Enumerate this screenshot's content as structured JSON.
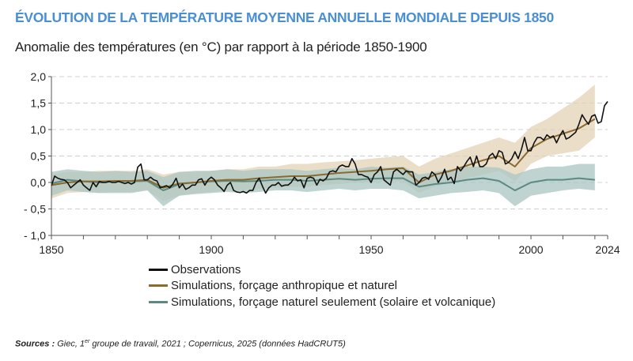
{
  "title": "ÉVOLUTION DE LA TEMPÉRATURE MOYENNE ANNUELLE MONDIALE DEPUIS 1850",
  "subtitle": "Anomalie des températures (en °C) par rapport à la période 1850-1900",
  "sources": {
    "label": "Sources :",
    "text_a": " Giec, 1",
    "sup": "er",
    "text_b": " groupe de travail, 2021 ; Copernicus, 2025 (données HadCRUT5)"
  },
  "chart_data": {
    "type": "line",
    "xlim": [
      1850,
      2024
    ],
    "ylim": [
      -1.0,
      2.0
    ],
    "x_ticks": [
      1850,
      1900,
      1950,
      2000,
      2024
    ],
    "y_ticks": [
      "2,0",
      "1,5",
      "1,0",
      "0,5",
      "0,0",
      "- 0,5",
      "- 1,0"
    ],
    "y_tick_values": [
      2.0,
      1.5,
      1.0,
      0.5,
      0.0,
      -0.5,
      -1.0
    ],
    "grid": "horizontal dashed",
    "legend_position": "bottom",
    "colors": {
      "observations": "#111111",
      "anthro": "#8a6a2e",
      "anthro_band": "#e3d3b5",
      "natural": "#5b8a82",
      "natural_band": "#a9c5c2"
    },
    "observations": {
      "name": "Observations",
      "start_year": 1850,
      "values": [
        -0.06,
        0.12,
        0.08,
        0.06,
        0.05,
        0.0,
        -0.1,
        -0.05,
        0.0,
        0.05,
        -0.05,
        -0.1,
        -0.15,
        0.0,
        -0.08,
        0.02,
        0.0,
        0.0,
        0.02,
        0.0,
        0.0,
        0.02,
        0.0,
        -0.02,
        0.0,
        -0.03,
        0.0,
        0.29,
        0.35,
        0.05,
        0.05,
        0.1,
        0.05,
        0.03,
        -0.1,
        -0.08,
        -0.06,
        -0.1,
        -0.03,
        0.08,
        -0.1,
        -0.03,
        -0.13,
        -0.1,
        -0.05,
        -0.05,
        0.05,
        0.07,
        -0.05,
        0.05,
        0.1,
        0.05,
        -0.05,
        -0.1,
        -0.17,
        -0.05,
        0.0,
        -0.15,
        -0.18,
        -0.19,
        -0.17,
        -0.2,
        -0.15,
        -0.15,
        0.0,
        0.08,
        -0.07,
        -0.2,
        -0.1,
        -0.05,
        -0.05,
        0.0,
        -0.07,
        -0.05,
        -0.05,
        0.0,
        0.1,
        0.03,
        0.05,
        -0.1,
        0.08,
        0.1,
        0.08,
        -0.05,
        0.06,
        0.03,
        0.08,
        0.2,
        0.22,
        0.2,
        0.3,
        0.33,
        0.3,
        0.3,
        0.45,
        0.35,
        0.15,
        0.15,
        0.12,
        0.1,
        0.0,
        0.15,
        0.2,
        0.3,
        0.05,
        0.0,
        -0.05,
        0.2,
        0.25,
        0.2,
        0.15,
        0.22,
        0.2,
        0.2,
        -0.05,
        0.0,
        0.08,
        0.1,
        0.06,
        0.2,
        0.15,
        0.0,
        0.1,
        0.25,
        0.05,
        0.1,
        -0.02,
        0.3,
        0.22,
        0.3,
        0.4,
        0.48,
        0.3,
        0.5,
        0.3,
        0.3,
        0.35,
        0.5,
        0.55,
        0.45,
        0.6,
        0.57,
        0.35,
        0.38,
        0.45,
        0.58,
        0.45,
        0.62,
        0.85,
        0.6,
        0.6,
        0.75,
        0.85,
        0.85,
        0.8,
        0.9,
        0.85,
        0.88,
        0.75,
        0.88,
        0.98,
        0.82,
        0.85,
        0.9,
        0.95,
        1.1,
        1.28,
        1.18,
        1.1,
        1.25,
        1.28,
        1.12,
        1.15,
        1.45,
        1.53
      ]
    },
    "simulation_years": [
      1850,
      1855,
      1860,
      1865,
      1870,
      1875,
      1880,
      1885,
      1890,
      1895,
      1900,
      1905,
      1910,
      1915,
      1920,
      1925,
      1930,
      1935,
      1940,
      1945,
      1950,
      1955,
      1960,
      1965,
      1970,
      1975,
      1980,
      1985,
      1990,
      1995,
      2000,
      2005,
      2010,
      2015,
      2020
    ],
    "anthro": {
      "name": "Simulations, forçage anthropique et naturel",
      "mean": [
        -0.05,
        0.0,
        0.02,
        0.02,
        0.03,
        0.03,
        0.05,
        -0.1,
        -0.02,
        0.0,
        0.03,
        0.05,
        0.05,
        0.08,
        0.1,
        0.12,
        0.12,
        0.15,
        0.18,
        0.2,
        0.22,
        0.25,
        0.27,
        0.0,
        0.15,
        0.22,
        0.32,
        0.42,
        0.5,
        0.3,
        0.65,
        0.82,
        0.92,
        1.02,
        1.2
      ],
      "low": [
        -0.3,
        -0.2,
        -0.18,
        -0.2,
        -0.18,
        -0.18,
        -0.15,
        -0.35,
        -0.25,
        -0.2,
        -0.18,
        -0.15,
        -0.15,
        -0.12,
        -0.1,
        -0.08,
        -0.08,
        -0.05,
        -0.03,
        0.0,
        0.0,
        0.02,
        0.02,
        -0.2,
        -0.08,
        0.0,
        0.08,
        0.15,
        0.22,
        0.02,
        0.35,
        0.5,
        0.55,
        0.6,
        0.85
      ],
      "high": [
        0.15,
        0.2,
        0.2,
        0.22,
        0.22,
        0.22,
        0.25,
        0.15,
        0.2,
        0.2,
        0.22,
        0.25,
        0.25,
        0.3,
        0.3,
        0.35,
        0.35,
        0.38,
        0.4,
        0.42,
        0.45,
        0.48,
        0.5,
        0.3,
        0.45,
        0.55,
        0.65,
        0.75,
        0.85,
        0.75,
        1.05,
        1.2,
        1.4,
        1.6,
        1.85
      ]
    },
    "natural": {
      "name": "Simulations, forçage naturel seulement (solaire et volcanique)",
      "mean": [
        -0.02,
        0.05,
        0.02,
        0.0,
        0.02,
        0.02,
        0.03,
        -0.15,
        -0.03,
        0.0,
        0.02,
        0.03,
        0.02,
        0.03,
        0.05,
        0.05,
        0.03,
        0.05,
        0.07,
        0.05,
        0.07,
        0.08,
        0.08,
        -0.08,
        -0.03,
        0.0,
        0.05,
        0.08,
        0.03,
        -0.15,
        0.0,
        0.05,
        0.05,
        0.08,
        0.05
      ],
      "low": [
        -0.25,
        -0.15,
        -0.18,
        -0.2,
        -0.2,
        -0.2,
        -0.15,
        -0.45,
        -0.25,
        -0.22,
        -0.2,
        -0.18,
        -0.2,
        -0.18,
        -0.15,
        -0.15,
        -0.18,
        -0.15,
        -0.12,
        -0.15,
        -0.12,
        -0.12,
        -0.15,
        -0.3,
        -0.25,
        -0.2,
        -0.18,
        -0.15,
        -0.2,
        -0.45,
        -0.25,
        -0.2,
        -0.15,
        -0.12,
        -0.15
      ],
      "high": [
        0.2,
        0.25,
        0.22,
        0.2,
        0.22,
        0.2,
        0.22,
        0.1,
        0.2,
        0.22,
        0.22,
        0.25,
        0.22,
        0.25,
        0.25,
        0.25,
        0.22,
        0.25,
        0.28,
        0.25,
        0.3,
        0.28,
        0.3,
        0.15,
        0.2,
        0.25,
        0.3,
        0.3,
        0.28,
        0.15,
        0.25,
        0.3,
        0.3,
        0.35,
        0.35
      ]
    }
  }
}
